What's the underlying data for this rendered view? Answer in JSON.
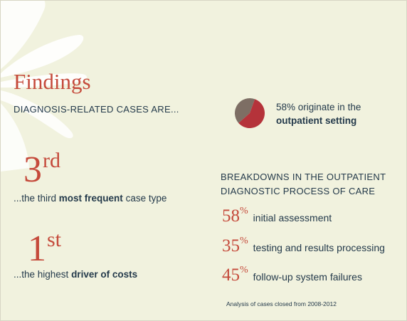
{
  "title": "Findings",
  "subtitle": "DIAGNOSIS-RELATED CASES ARE...",
  "stat1": {
    "num": "3",
    "suffix": "rd",
    "prefix": "...the third ",
    "bold": "most frequent",
    "rest": " case type"
  },
  "stat2": {
    "num": "1",
    "suffix": "st",
    "prefix": "...the highest ",
    "bold": "driver of costs"
  },
  "pie": {
    "line1": "58% originate in the",
    "line2": "outpatient setting",
    "outpatient_percent": 58,
    "outpatient_color": "#b5333a",
    "other_color": "#7d6e64"
  },
  "breakdown": {
    "heading_line1": "BREAKDOWNS IN THE OUTPATIENT",
    "heading_line2": "DIAGNOSTIC PROCESS OF CARE",
    "items": [
      {
        "value": "58",
        "unit": "%",
        "label": "initial assessment"
      },
      {
        "value": "35",
        "unit": "%",
        "label": "testing and results processing"
      },
      {
        "value": "45",
        "unit": "%",
        "label": "follow-up system failures"
      }
    ]
  },
  "footnote": "Analysis of cases closed from 2008-2012",
  "colors": {
    "accent": "#c54a3b",
    "text": "#243a4b",
    "background": "#f1f2de"
  }
}
